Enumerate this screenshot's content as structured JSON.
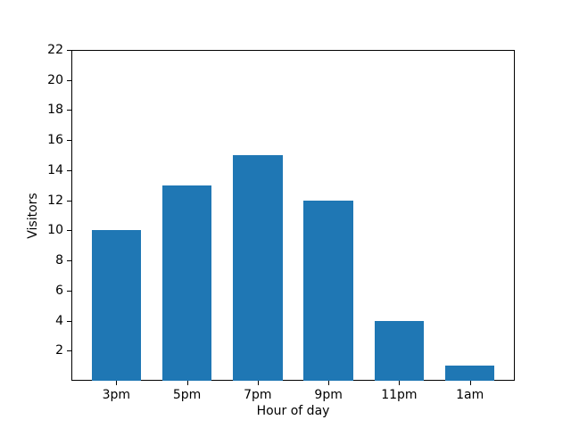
{
  "chart_data": {
    "type": "bar",
    "categories": [
      "3pm",
      "5pm",
      "7pm",
      "9pm",
      "11pm",
      "1am"
    ],
    "values": [
      10,
      13,
      15,
      12,
      4,
      1
    ],
    "title": "",
    "xlabel": "Hour of day",
    "ylabel": "Visitors",
    "yticks": [
      2,
      4,
      6,
      8,
      10,
      12,
      14,
      16,
      18,
      20,
      22
    ],
    "ylim": [
      0,
      22
    ],
    "bar_color": "#1f77b4",
    "axis_color": "#000000",
    "background_color": "#ffffff",
    "legend": null,
    "grid": false
  }
}
